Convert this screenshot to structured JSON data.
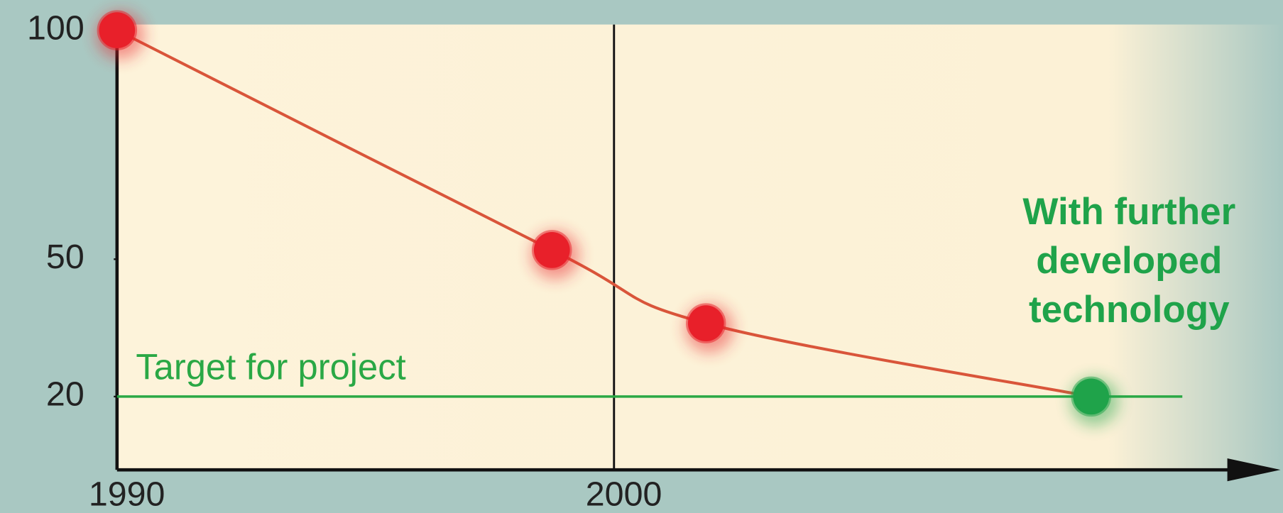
{
  "chart_data": {
    "type": "line",
    "x": [
      1990,
      1998.75,
      2001.85,
      2009.6
    ],
    "series": [
      {
        "values": [
          100,
          52,
          36,
          20
        ],
        "color": "#d9553a",
        "point_colors": [
          "#e8202a",
          "#e8202a",
          "#e8202a",
          "#1fa34a"
        ]
      }
    ],
    "xlim": [
      1990,
      2013
    ],
    "xticks": [
      1990,
      2000
    ],
    "ylim": [
      4,
      100
    ],
    "yticks": [
      100,
      50,
      20
    ],
    "grid": true,
    "target": {
      "value": 20,
      "label": "Target for project",
      "color": "#2aa845"
    },
    "annotation": [
      "With further",
      "developed",
      "technology"
    ],
    "annotation_color": "#1fa34a"
  }
}
